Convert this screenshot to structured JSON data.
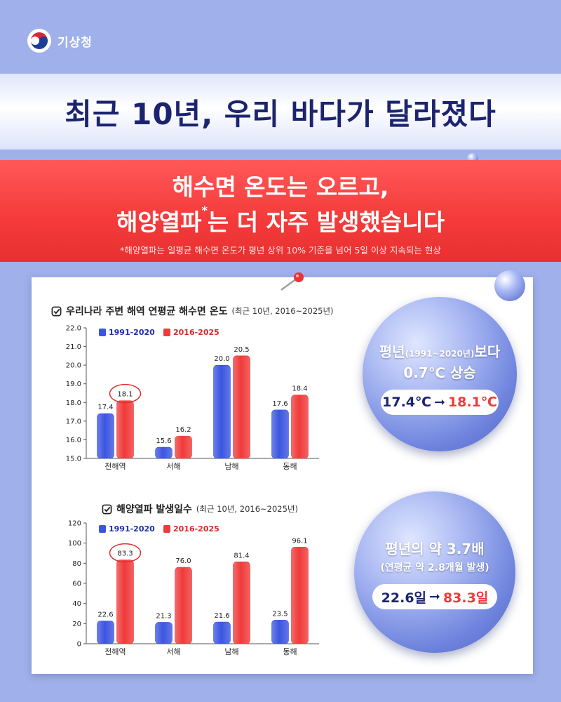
{
  "brand": {
    "name": "기상청"
  },
  "title": "최근 10년, 우리 바다가 달라졌다",
  "headline": {
    "line1": "해수면 온도는 오르고,",
    "line2_a": "해양열파",
    "line2_mark": "*",
    "line2_b": "는 더 자주 발생했습니다",
    "note": "*해양열파는 일평균 해수면 온도가 평년 상위 10% 기준을 넘어 5일 이상 지속되는 현상"
  },
  "sections": [
    {
      "title": "우리나라 주변 해역 연평균 해수면 온도",
      "subtitle": "(최근 10년, 2016~2025년)"
    },
    {
      "title": "해양열파 발생일수",
      "subtitle": "(최근 10년, 2016~2025년)"
    }
  ],
  "bubbles": [
    {
      "line1_a": "평년",
      "line1_small": "(1991~2020년)",
      "line1_b": "보다",
      "line2": "0.7℃ 상승",
      "from": "17.4℃",
      "arrow": "➞",
      "to": "18.1℃"
    },
    {
      "line1": "평년의 약 3.7배",
      "line2": "(연평균 약 2.8개월 발생)",
      "from": "22.6일",
      "arrow": "➞",
      "to": "83.3일"
    }
  ],
  "chart_data": [
    {
      "type": "bar",
      "categories": [
        "전해역",
        "서해",
        "남해",
        "동해"
      ],
      "series": [
        {
          "name": "1991-2020",
          "values": [
            17.4,
            15.6,
            20.0,
            17.6
          ],
          "color": "#3b55e0"
        },
        {
          "name": "2016-2025",
          "values": [
            18.1,
            16.2,
            20.5,
            18.4
          ],
          "color": "#f03a3a"
        }
      ],
      "labels": [
        [
          "17.4",
          "15.6",
          "20.0",
          "17.6"
        ],
        [
          "18.1",
          "16.2",
          "20.5",
          "18.4"
        ]
      ],
      "ylim": [
        15.0,
        22.0
      ],
      "yticks": [
        "15.0",
        "16.0",
        "17.0",
        "18.0",
        "19.0",
        "20.0",
        "21.0",
        "22.0"
      ],
      "grid": false,
      "legend": "top-left",
      "highlight": "전해역 2016-2025"
    },
    {
      "type": "bar",
      "categories": [
        "전해역",
        "서해",
        "남해",
        "동해"
      ],
      "series": [
        {
          "name": "1991-2020",
          "values": [
            22.6,
            21.3,
            21.6,
            23.5
          ],
          "color": "#3b55e0"
        },
        {
          "name": "2016-2025",
          "values": [
            83.3,
            76.0,
            81.4,
            96.1
          ],
          "color": "#f03a3a"
        }
      ],
      "labels": [
        [
          "22.6",
          "21.3",
          "21.6",
          "23.5"
        ],
        [
          "83.3",
          "76.0",
          "81.4",
          "96.1"
        ]
      ],
      "ylim": [
        0,
        120
      ],
      "yticks": [
        "0",
        "20",
        "40",
        "60",
        "80",
        "100",
        "120"
      ],
      "grid": false,
      "legend": "top-left",
      "highlight": "전해역 2016-2025"
    }
  ]
}
